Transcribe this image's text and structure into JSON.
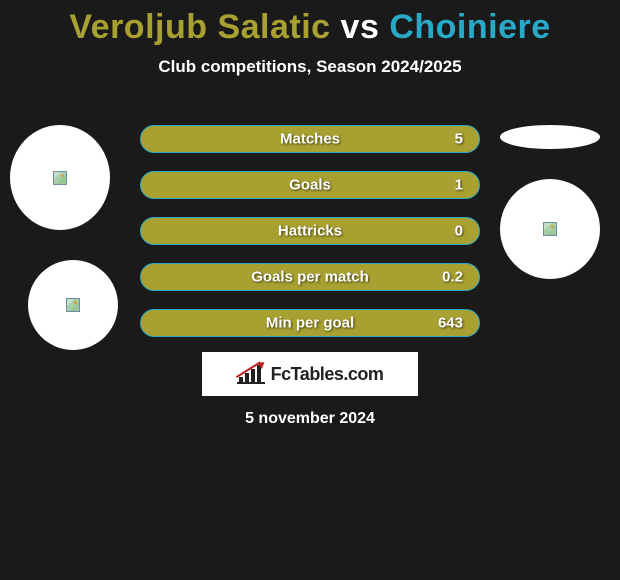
{
  "background_color": "#1a1a1a",
  "title": {
    "player1": "Veroljub Salatic",
    "vs": "vs",
    "player2": "Choiniere",
    "player1_color": "#a8a030",
    "vs_color": "#ffffff",
    "player2_color": "#2aa8c8",
    "fontsize": 34
  },
  "subtitle": {
    "text": "Club competitions, Season 2024/2025",
    "color": "#ffffff",
    "fontsize": 17
  },
  "bar_style": {
    "fill_color": "#a8a030",
    "border_color": "#2aa8c8",
    "border_width": 1,
    "height": 28,
    "radius": 14,
    "label_color": "#ffffff",
    "value_color": "#ffffff"
  },
  "stats": [
    {
      "label": "Matches",
      "value": "5"
    },
    {
      "label": "Goals",
      "value": "1"
    },
    {
      "label": "Hattricks",
      "value": "0"
    },
    {
      "label": "Goals per match",
      "value": "0.2"
    },
    {
      "label": "Min per goal",
      "value": "643"
    }
  ],
  "logo": {
    "text": "FcTables.com",
    "text_color": "#222222",
    "bg_color": "#ffffff"
  },
  "date": {
    "text": "5 november 2024",
    "color": "#ffffff"
  },
  "avatars": {
    "bg_color": "#ffffff"
  }
}
